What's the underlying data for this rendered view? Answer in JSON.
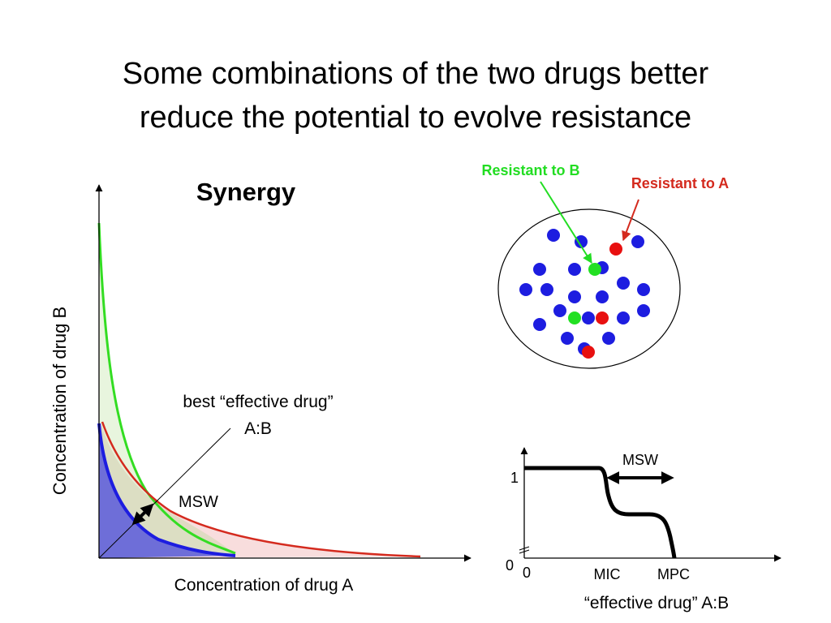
{
  "slide": {
    "title_line1": "Some combinations of the two drugs better",
    "title_line2": "reduce the potential to evolve resistance"
  },
  "main_plot": {
    "heading": "Synergy",
    "xlabel": "Concentration of drug A",
    "ylabel": "Concentration of drug B",
    "diagonal_label_line1": "best “effective drug”",
    "diagonal_label_line2": "A:B",
    "window_label": "MSW",
    "colors": {
      "green": "#33dd22",
      "red": "#d42a1e",
      "blue": "#1d1de0",
      "blue_fill": "#6e6ed8"
    }
  },
  "population": {
    "label_resistant_b": "Resistant to B",
    "label_resistant_a": "Resistant to A",
    "colors": {
      "susceptible": "#1d1de0",
      "resistant_a": "#e81010",
      "resistant_b": "#22e022"
    },
    "counts": {
      "susceptible": 20,
      "resistant_a": 3,
      "resistant_b": 2
    }
  },
  "kill_curve": {
    "window_label": "MSW",
    "y_tick_1": "1",
    "y_tick_0": "0",
    "x_tick_0": "0",
    "x_tick_mic": "MIC",
    "x_tick_mpc": "MPC",
    "xlabel": "“effective drug” A:B"
  }
}
